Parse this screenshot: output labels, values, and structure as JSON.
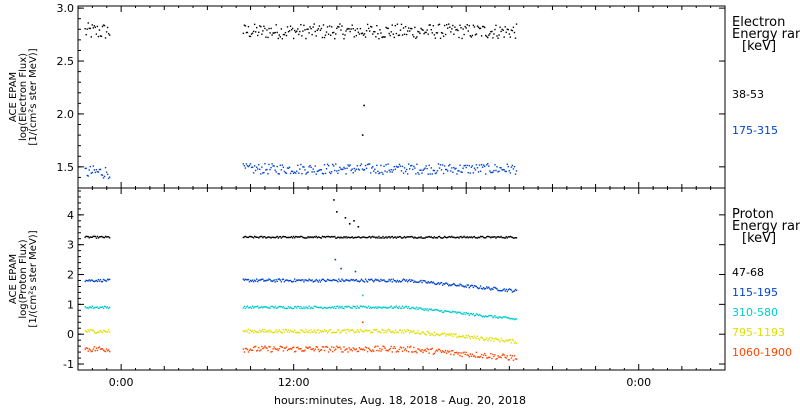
{
  "xlabel": "hours:minutes, Aug. 18, 2018 - Aug. 20, 2018",
  "x_ticks": [
    "0:00",
    "12:00",
    "0:00"
  ],
  "chart_data": [
    {
      "type": "scatter",
      "panel": "electron",
      "ylabel_lines": [
        "ACE EPAM",
        "log(Electron Flux)",
        "[1/(cm²s ster MeV)]"
      ],
      "legend_head": [
        "Electron",
        "Energy ranges",
        "[keV]"
      ],
      "ylim": [
        1.3,
        3.02
      ],
      "yticks": [
        1.5,
        2.0,
        2.5,
        3.0
      ],
      "ytick_labels": [
        "1.5",
        "2.0",
        "2.5",
        "3.0"
      ],
      "xlim_hours": [
        -3,
        42
      ],
      "series": [
        {
          "name": "38-53",
          "color": "#000000",
          "segments": [
            {
              "x": [
                -2.5,
                -0.8
              ],
              "mean": 2.78,
              "noise": 0.08
            },
            {
              "x": [
                8.5,
                27.5
              ],
              "mean": 2.78,
              "noise": 0.07
            }
          ],
          "spikes": [
            {
              "x": 16.9,
              "y": 2.08
            },
            {
              "x": 16.8,
              "y": 1.8
            }
          ]
        },
        {
          "name": "175-315",
          "color": "#0044cc",
          "segments": [
            {
              "x": [
                -2.5,
                -0.8
              ],
              "mean": 1.45,
              "noise": 0.06
            },
            {
              "x": [
                8.5,
                27.5
              ],
              "mean": 1.48,
              "noise": 0.05
            }
          ],
          "spikes": []
        }
      ]
    },
    {
      "type": "scatter",
      "panel": "proton",
      "ylabel_lines": [
        "ACE EPAM",
        "log(Proton Flux)",
        "[1/(cm²s ster MeV)]"
      ],
      "legend_head": [
        "Proton",
        "Energy ranges",
        "[keV]"
      ],
      "ylim": [
        -1.2,
        4.9
      ],
      "yticks": [
        -1,
        0,
        1,
        2,
        3,
        4
      ],
      "ytick_labels": [
        "-1",
        "0",
        "1",
        "2",
        "3",
        "4"
      ],
      "xlim_hours": [
        -3,
        42
      ],
      "series": [
        {
          "name": "47-68",
          "color": "#000000",
          "segments": [
            {
              "x": [
                -2.5,
                -0.8
              ],
              "mean": 3.25,
              "noise": 0.03
            },
            {
              "x": [
                8.5,
                27.5
              ],
              "mean": 3.25,
              "noise": 0.03
            }
          ],
          "spikes": [
            {
              "x": 14.8,
              "y": 4.5
            },
            {
              "x": 15.0,
              "y": 4.1
            },
            {
              "x": 15.6,
              "y": 3.9
            },
            {
              "x": 15.9,
              "y": 3.7
            },
            {
              "x": 16.2,
              "y": 3.8
            },
            {
              "x": 16.5,
              "y": 3.6
            }
          ]
        },
        {
          "name": "115-195",
          "color": "#0044cc",
          "segments": [
            {
              "x": [
                -2.5,
                -0.8
              ],
              "mean": 1.8,
              "noise": 0.04
            },
            {
              "x": [
                8.5,
                27.5
              ],
              "mean": 1.8,
              "noise": 0.05,
              "drift": -0.35
            }
          ],
          "spikes": [
            {
              "x": 14.9,
              "y": 2.5
            },
            {
              "x": 15.3,
              "y": 2.2
            },
            {
              "x": 16.3,
              "y": 2.1
            }
          ]
        },
        {
          "name": "310-580",
          "color": "#00cccc",
          "segments": [
            {
              "x": [
                -2.5,
                -0.8
              ],
              "mean": 0.9,
              "noise": 0.04
            },
            {
              "x": [
                8.5,
                27.5
              ],
              "mean": 0.9,
              "noise": 0.04,
              "drift": -0.4
            }
          ],
          "spikes": [
            {
              "x": 16.8,
              "y": 1.3
            }
          ]
        },
        {
          "name": "795-1193",
          "color": "#e0e000",
          "segments": [
            {
              "x": [
                -2.5,
                -0.8
              ],
              "mean": 0.1,
              "noise": 0.06
            },
            {
              "x": [
                8.5,
                27.5
              ],
              "mean": 0.1,
              "noise": 0.06,
              "drift": -0.35
            }
          ],
          "spikes": []
        },
        {
          "name": "1060-1900",
          "color": "#ff4400",
          "segments": [
            {
              "x": [
                -2.5,
                -0.8
              ],
              "mean": -0.5,
              "noise": 0.1
            },
            {
              "x": [
                8.5,
                27.5
              ],
              "mean": -0.5,
              "noise": 0.1,
              "drift": -0.3
            }
          ],
          "spikes": [
            {
              "x": 16.8,
              "y": 0.4
            }
          ]
        }
      ]
    }
  ]
}
